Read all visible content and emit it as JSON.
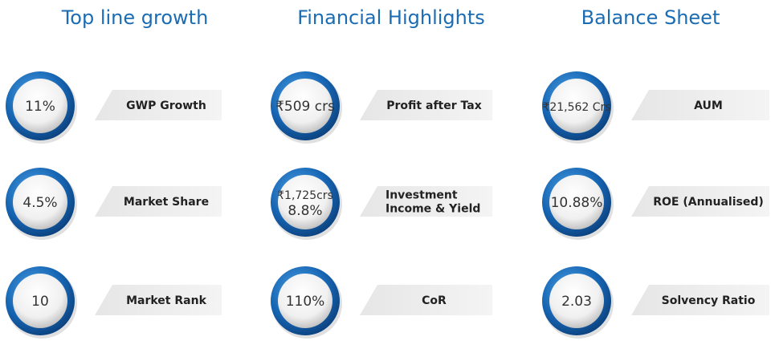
{
  "columns": [
    {
      "title": "Top line growth",
      "items": [
        {
          "value": [
            "11%"
          ],
          "label": [
            "GWP Growth"
          ]
        },
        {
          "value": [
            "4.5%"
          ],
          "label": [
            "Market Share"
          ]
        },
        {
          "value": [
            "10"
          ],
          "label": [
            "Market Rank"
          ]
        }
      ]
    },
    {
      "title": "Financial Highlights",
      "items": [
        {
          "value": [
            "₹509 crs"
          ],
          "label": [
            "Profit after Tax"
          ]
        },
        {
          "value": [
            "₹1,725crs",
            "8.8%"
          ],
          "label": [
            "Investment",
            "Income & Yield"
          ]
        },
        {
          "value": [
            "110%"
          ],
          "label": [
            "CoR"
          ]
        }
      ]
    },
    {
      "title": "Balance Sheet",
      "items": [
        {
          "value": [
            "₹21,562 Crs"
          ],
          "label": [
            "AUM"
          ]
        },
        {
          "value": [
            "10.88%"
          ],
          "label": [
            "ROE (Annualised)"
          ]
        },
        {
          "value": [
            "2.03"
          ],
          "label": [
            "Solvency Ratio"
          ]
        }
      ]
    }
  ]
}
